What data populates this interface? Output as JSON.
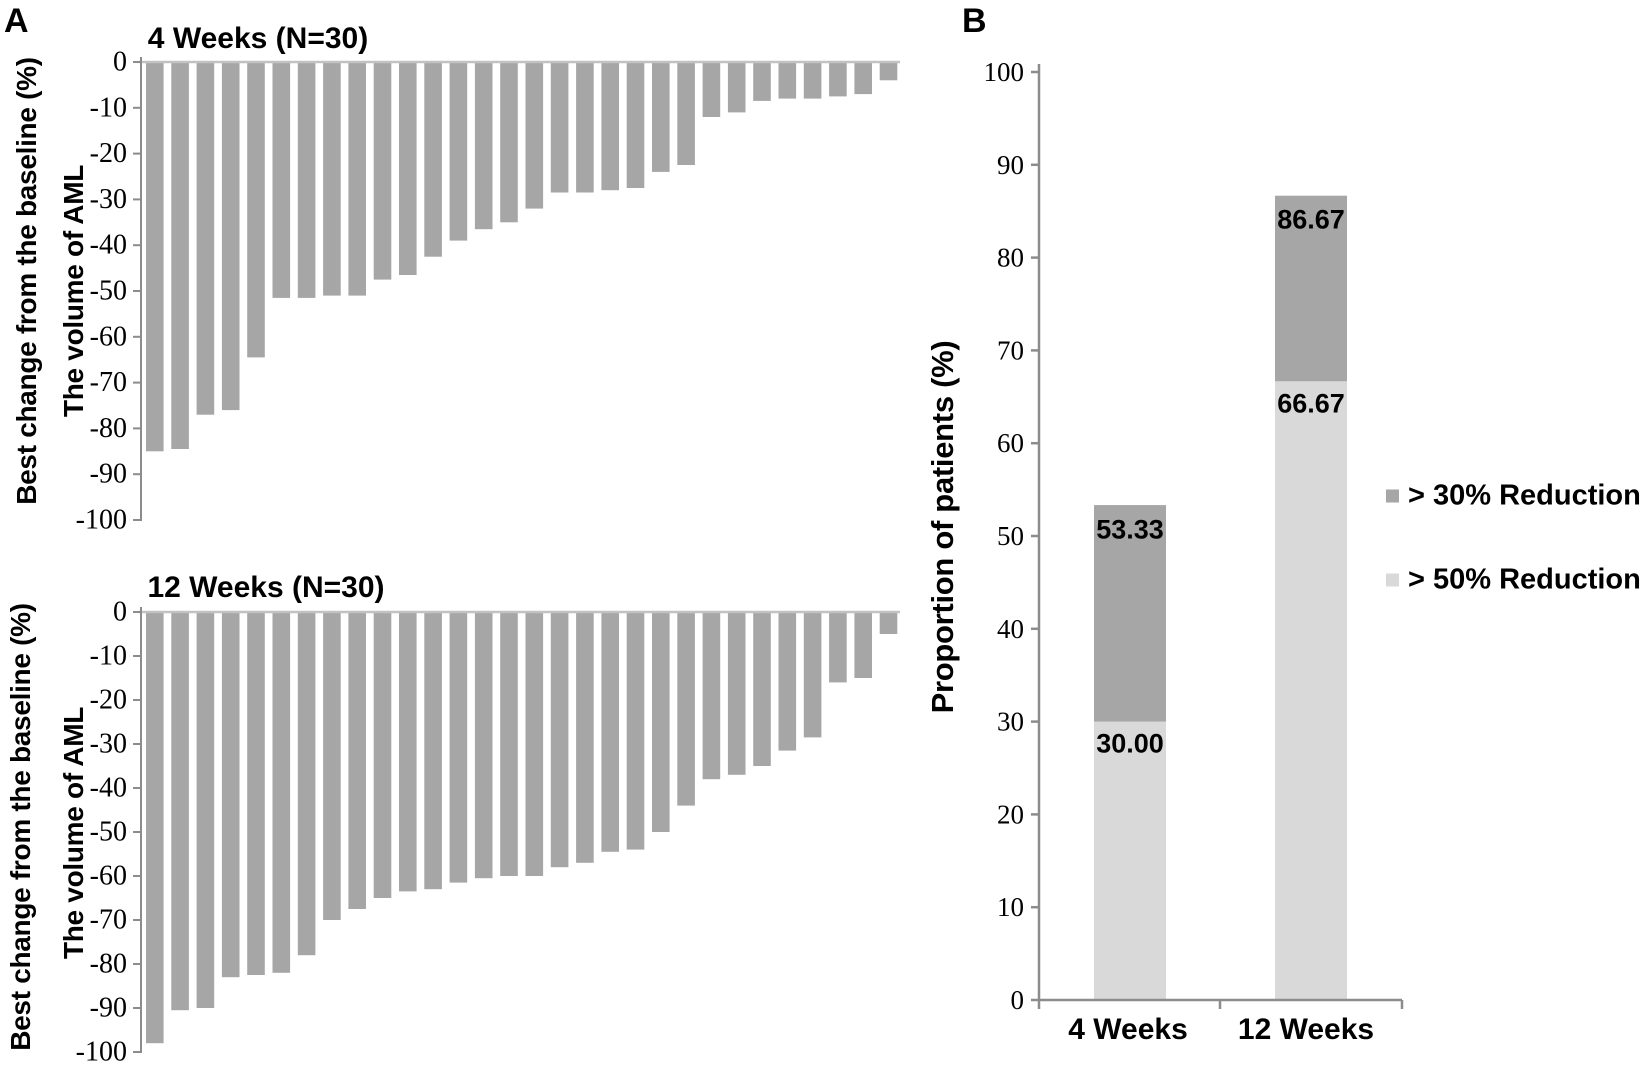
{
  "figure": {
    "panels": [
      {
        "label": "A"
      },
      {
        "label": "B"
      }
    ]
  },
  "colors": {
    "bar": "#a6a6a6",
    "light_bar": "#d9d9d9",
    "axis": "#8c8c8c",
    "baseline": "#c2c2c2",
    "text": "#000000"
  },
  "chart_data": [
    {
      "id": "waterfall_4_weeks",
      "type": "bar",
      "panel": "A",
      "title": "4 Weeks (N=30)",
      "ylabel_line1": "Best change from the baseline (%)",
      "ylabel_line2": "The volume of AML",
      "ylim": [
        -100,
        0
      ],
      "grid": false,
      "tick_labels": [
        "0",
        "-10",
        "-20",
        "-30",
        "-40",
        "-50",
        "-60",
        "-70",
        "-80",
        "-90",
        "-100"
      ],
      "tick_values": [
        0,
        -10,
        -20,
        -30,
        -40,
        -50,
        -60,
        -70,
        -80,
        -90,
        -100
      ],
      "values": [
        -85,
        -84.5,
        -77,
        -76,
        -64.5,
        -51.5,
        -51.5,
        -51,
        -51,
        -47.5,
        -46.5,
        -42.5,
        -39,
        -36.5,
        -35,
        -32,
        -28.5,
        -28.5,
        -28,
        -27.5,
        -24,
        -22.5,
        -12,
        -11,
        -8.5,
        -8,
        -8,
        -7.5,
        -7,
        -4
      ]
    },
    {
      "id": "waterfall_12_weeks",
      "type": "bar",
      "panel": "A",
      "title": "12 Weeks (N=30)",
      "ylabel_line1": "Best change from the baseline (%)",
      "ylabel_line2": "The volume of AML",
      "ylim": [
        -100,
        0
      ],
      "grid": false,
      "tick_labels": [
        "0",
        "-10",
        "-20",
        "-30",
        "-40",
        "-50",
        "-60",
        "-70",
        "-80",
        "-90",
        "-100"
      ],
      "tick_values": [
        0,
        -10,
        -20,
        -30,
        -40,
        -50,
        -60,
        -70,
        -80,
        -90,
        -100
      ],
      "values": [
        -98,
        -90.5,
        -90,
        -83,
        -82.5,
        -82,
        -78,
        -70,
        -67.5,
        -65,
        -63.5,
        -63,
        -61.5,
        -60.5,
        -60,
        -60,
        -58,
        -57,
        -54.5,
        -54,
        -50,
        -44,
        -38,
        -37,
        -35,
        -31.5,
        -28.5,
        -16,
        -15,
        -5
      ]
    },
    {
      "id": "stacked_proportions",
      "type": "stacked-bar",
      "panel": "B",
      "categories": [
        "4 Weeks",
        "12 Weeks"
      ],
      "ylabel": "Proportion of patients (%)",
      "ylim": [
        0,
        100
      ],
      "grid": false,
      "legend_position": "right",
      "tick_labels": [
        "100",
        "90",
        "80",
        "70",
        "60",
        "50",
        "40",
        "30",
        "20",
        "10",
        "0"
      ],
      "tick_values": [
        100,
        90,
        80,
        70,
        60,
        50,
        40,
        30,
        20,
        10,
        0
      ],
      "series": [
        {
          "name": "> 50% Reduction",
          "color": "#d9d9d9",
          "values": [
            30.0,
            66.67
          ]
        },
        {
          "name": "> 30% Reduction",
          "color": "#a6a6a6",
          "cumulative_totals": [
            53.33,
            86.67
          ]
        }
      ],
      "value_labels": {
        "w4_total": "53.33",
        "w4_gt50": "30.00",
        "w12_total": "86.67",
        "w12_gt50": "66.67"
      },
      "legend": [
        {
          "label": "> 30% Reduction",
          "color": "#a6a6a6"
        },
        {
          "label": "> 50% Reduction",
          "color": "#d9d9d9"
        }
      ]
    }
  ]
}
